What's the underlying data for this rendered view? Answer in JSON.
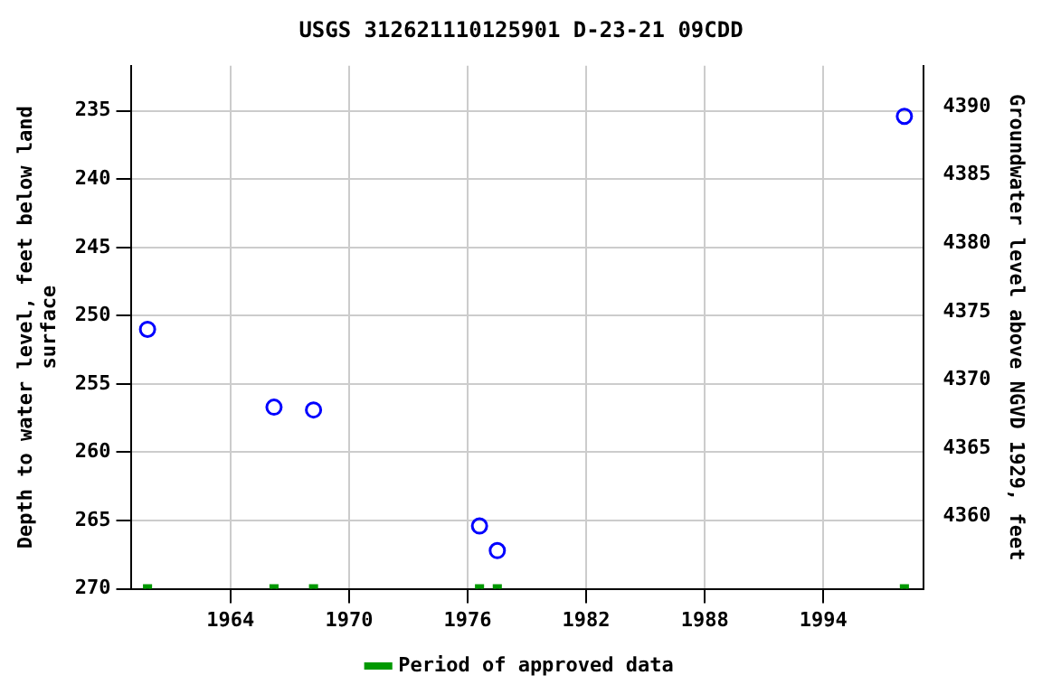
{
  "chart_data": {
    "type": "scatter",
    "title": "USGS 312621110125901 D-23-21 09CDD",
    "ylabel": "Depth to water level, feet below land surface",
    "y2label": "Groundwater level above NGVD 1929, feet",
    "x": [
      1959.8,
      1966.2,
      1968.2,
      1976.6,
      1977.5,
      1998.1
    ],
    "series": [
      {
        "color": "#0000ff",
        "marker": "circle",
        "values": [
          251.0,
          256.7,
          256.9,
          265.4,
          267.2,
          235.4
        ]
      },
      {
        "name": "Period of approved data",
        "color": "#009900",
        "marker": "square",
        "values": [
          270,
          270,
          270,
          270,
          270,
          270
        ]
      }
    ],
    "xlim": [
      1958.95,
      1999.05
    ],
    "xticks": [
      1964,
      1970,
      1976,
      1982,
      1988,
      1994
    ],
    "ylim": [
      270,
      231.7
    ],
    "yticks": [
      235,
      240,
      245,
      250,
      255,
      260,
      265,
      270
    ],
    "y2lim": [
      4354.7,
      4393
    ],
    "y2ticks": [
      4360,
      4365,
      4370,
      4375,
      4380,
      4385,
      4390
    ],
    "grid": true,
    "legend": "bottom"
  }
}
